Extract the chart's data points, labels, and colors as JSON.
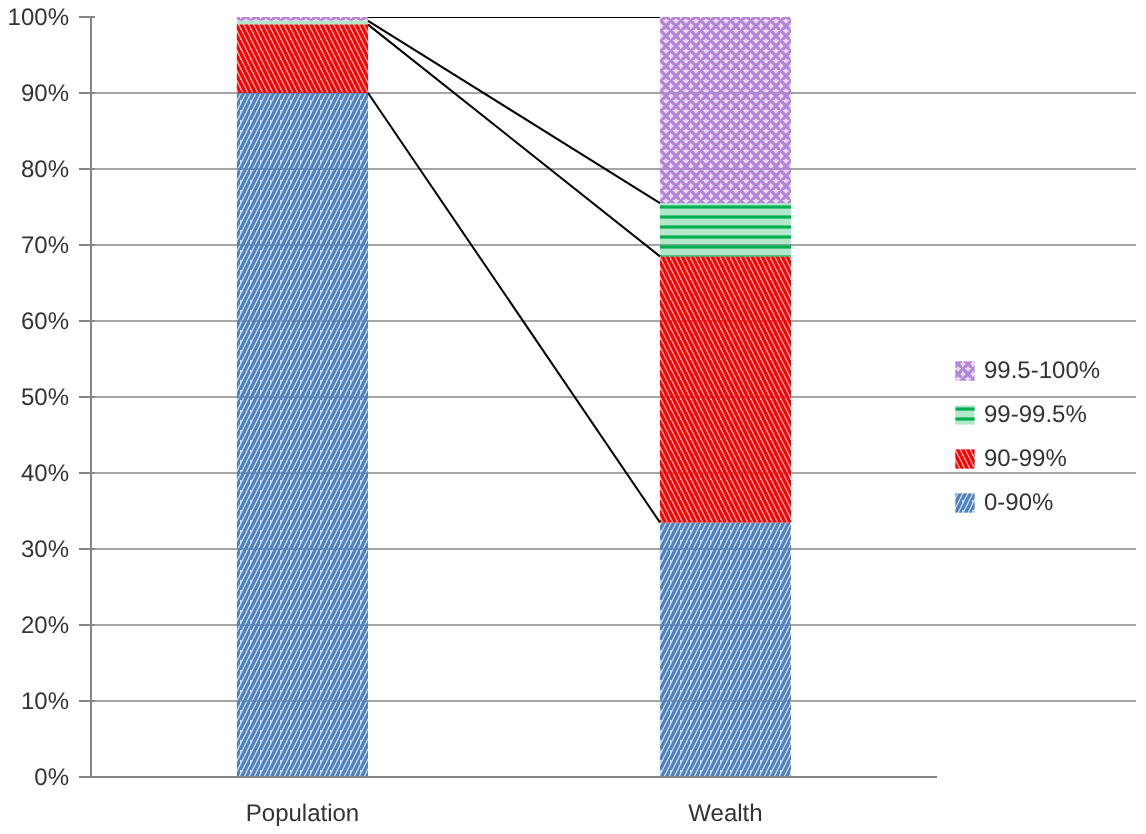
{
  "chart_data": {
    "type": "bar",
    "stacked": true,
    "categories": [
      "Population",
      "Wealth"
    ],
    "series": [
      {
        "name": "0-90%",
        "color": "#4f81bd",
        "values": [
          90,
          33.5
        ]
      },
      {
        "name": "90-99%",
        "color": "#ff0000",
        "values": [
          9,
          35
        ]
      },
      {
        "name": "99-99.5%",
        "color": "#00b050",
        "values": [
          0.5,
          7
        ]
      },
      {
        "name": "99.5-100%",
        "color": "#b283d8",
        "values": [
          0.5,
          24.5
        ]
      }
    ],
    "ylim": [
      0,
      100
    ],
    "yticks": [
      {
        "value": 0,
        "label": "0%"
      },
      {
        "value": 10,
        "label": "10%"
      },
      {
        "value": 20,
        "label": "20%"
      },
      {
        "value": 30,
        "label": "30%"
      },
      {
        "value": 40,
        "label": "40%"
      },
      {
        "value": 50,
        "label": "50%"
      },
      {
        "value": 60,
        "label": "60%"
      },
      {
        "value": 70,
        "label": "70%"
      },
      {
        "value": 80,
        "label": "80%"
      },
      {
        "value": 90,
        "label": "90%"
      },
      {
        "value": 100,
        "label": "100%"
      }
    ],
    "grid": "y",
    "legend": "right"
  }
}
